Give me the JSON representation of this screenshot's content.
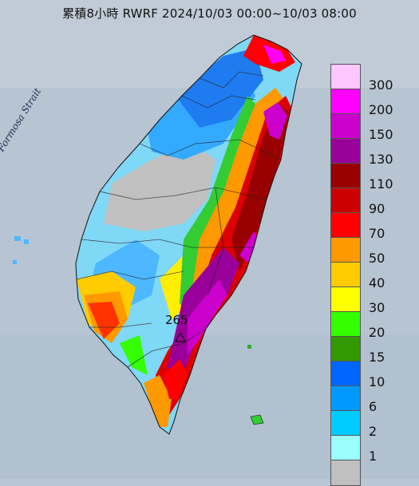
{
  "title": "累積8小時 RWRF 2024/10/03 00:00~10/03 08:00",
  "strait_label": "Formosa Strait",
  "max_label": "265",
  "legend": [
    {
      "label": "300",
      "color": "#ffc6ff"
    },
    {
      "label": "200",
      "color": "#ff00ff"
    },
    {
      "label": "150",
      "color": "#cc00cc"
    },
    {
      "label": "130",
      "color": "#990099"
    },
    {
      "label": "110",
      "color": "#990000"
    },
    {
      "label": "90",
      "color": "#cc0000"
    },
    {
      "label": "70",
      "color": "#ff0000"
    },
    {
      "label": "50",
      "color": "#ff9900"
    },
    {
      "label": "40",
      "color": "#ffcc00"
    },
    {
      "label": "30",
      "color": "#ffff00"
    },
    {
      "label": "20",
      "color": "#33ff00"
    },
    {
      "label": "15",
      "color": "#339900"
    },
    {
      "label": "10",
      "color": "#0066ff"
    },
    {
      "label": "6",
      "color": "#0099ff"
    },
    {
      "label": "2",
      "color": "#00ccff"
    },
    {
      "label": "1",
      "color": "#99ffff"
    },
    {
      "label": "",
      "color": "#c0c0c0"
    }
  ]
}
